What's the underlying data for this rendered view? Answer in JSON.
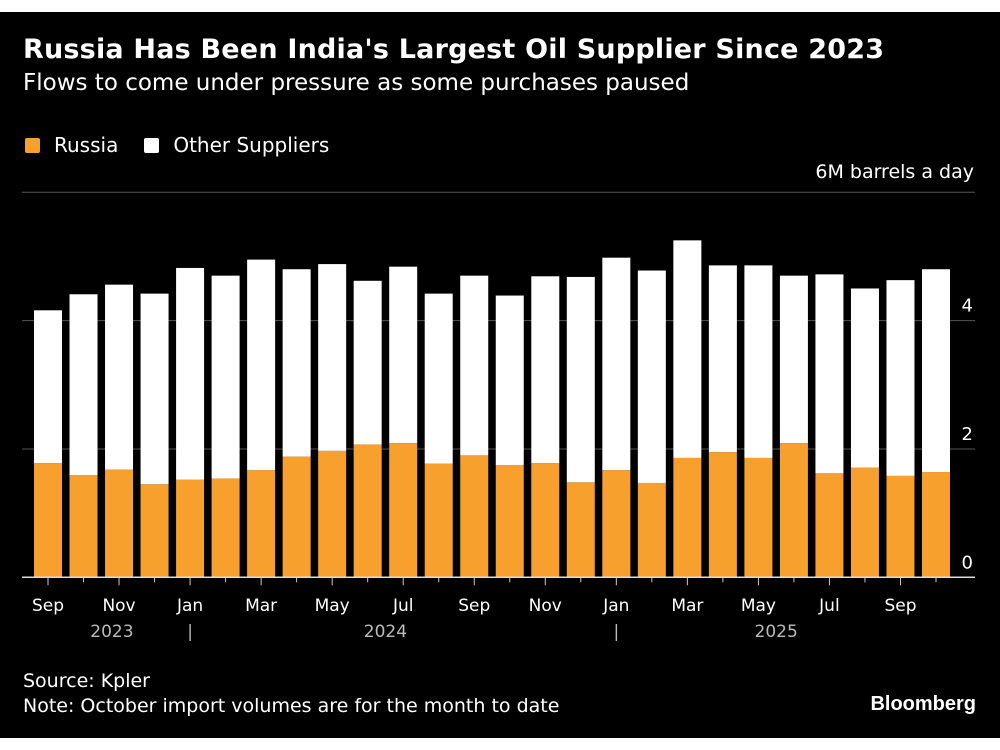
{
  "title": "Russia Has Been India's Largest Oil Supplier Since 2023",
  "subtitle": "Flows to come under pressure as some purchases paused",
  "source": "Source: Kpler",
  "note": "Note: October import volumes are for the month to date",
  "brand": "Bloomberg",
  "chart_data": {
    "type": "bar",
    "stacked": true,
    "unit_label": "6M barrels a day",
    "ylim": [
      0,
      6
    ],
    "yticks": [
      "0",
      "2",
      "4"
    ],
    "grid": true,
    "legend_placement": "top-left",
    "categories": [
      "Sep 2023",
      "Oct 2023",
      "Nov 2023",
      "Dec 2023",
      "Jan 2024",
      "Feb 2024",
      "Mar 2024",
      "Apr 2024",
      "May 2024",
      "Jun 2024",
      "Jul 2024",
      "Aug 2024",
      "Sep 2024",
      "Oct 2024",
      "Nov 2024",
      "Dec 2024",
      "Jan 2025",
      "Feb 2025",
      "Mar 2025",
      "Apr 2025",
      "May 2025",
      "Jun 2025",
      "Jul 2025",
      "Aug 2025",
      "Sep 2025",
      "Oct 2025"
    ],
    "xtick_labels": [
      "Sep",
      "",
      "Nov",
      "",
      "Jan",
      "",
      "Mar",
      "",
      "May",
      "",
      "Jul",
      "",
      "Sep",
      "",
      "Nov",
      "",
      "Jan",
      "",
      "Mar",
      "",
      "May",
      "",
      "Jul",
      "",
      "Sep",
      ""
    ],
    "year_labels": [
      {
        "label": "2023",
        "under": [
          "Sep 2023",
          "Dec 2023"
        ]
      },
      {
        "label": "2024",
        "under": [
          "Jan 2024",
          "Dec 2024"
        ]
      },
      {
        "label": "2025",
        "under": [
          "Jan 2025",
          "Oct 2025"
        ]
      }
    ],
    "year_separator": "|",
    "series": [
      {
        "name": "Russia",
        "color": "#f7a02d",
        "values": [
          1.78,
          1.59,
          1.68,
          1.45,
          1.52,
          1.54,
          1.67,
          1.88,
          1.97,
          2.07,
          2.09,
          1.77,
          1.9,
          1.75,
          1.78,
          1.48,
          1.67,
          1.47,
          1.86,
          1.95,
          1.86,
          2.09,
          1.62,
          1.71,
          1.58,
          1.64
        ]
      },
      {
        "name": "Other Suppliers",
        "color": "#ffffff",
        "values": [
          2.38,
          2.82,
          2.88,
          2.97,
          3.3,
          3.16,
          3.28,
          2.92,
          2.91,
          2.55,
          2.75,
          2.65,
          2.8,
          2.64,
          2.91,
          3.2,
          3.31,
          3.31,
          3.39,
          2.91,
          3.0,
          2.61,
          3.1,
          2.79,
          3.05,
          3.16
        ]
      }
    ]
  }
}
